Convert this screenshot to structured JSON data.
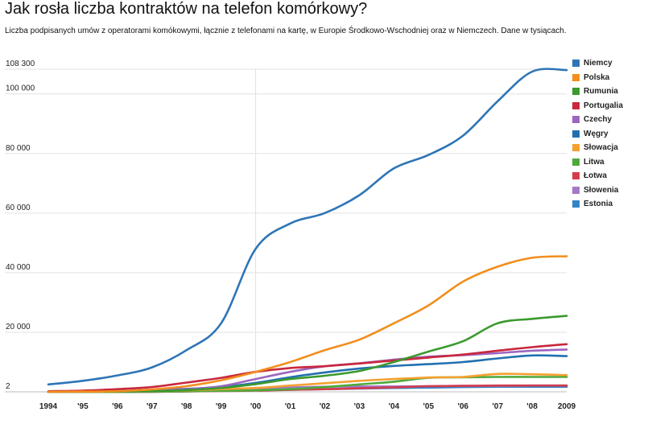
{
  "chart_data": {
    "type": "line",
    "title": "Jak rosła liczba kontraktów na telefon komórkowy?",
    "subtitle": "Liczba podpisanych umów z operatorami komókowymi, łącznie z telefonami na kartę, w Europie Środkowo-Wschodniej oraz w Niemczech. Dane w tysiącach.",
    "xlabel": "",
    "ylabel": "",
    "categories": [
      "1994",
      "'95",
      "'96",
      "'97",
      "'98",
      "'99",
      "'00",
      "'01",
      "'02",
      "'03",
      "'04",
      "'05",
      "'06",
      "'07",
      "'08",
      "2009"
    ],
    "ylim": [
      2,
      108300
    ],
    "yticks": [
      {
        "value": 2,
        "label": "2"
      },
      {
        "value": 20000,
        "label": "20 000"
      },
      {
        "value": 40000,
        "label": "40 000"
      },
      {
        "value": 60000,
        "label": "60 000"
      },
      {
        "value": 80000,
        "label": "80 000"
      },
      {
        "value": 100000,
        "label": "100 000"
      },
      {
        "value": 108300,
        "label": "108 300"
      }
    ],
    "highlight_x": "'00",
    "legend_position": "right",
    "series": [
      {
        "name": "Niemcy",
        "color": "#2e75b6",
        "values": [
          2500,
          3700,
          5500,
          8200,
          14000,
          23000,
          48000,
          56500,
          60000,
          66000,
          75000,
          79500,
          86000,
          97500,
          107500,
          108000
        ]
      },
      {
        "name": "Polska",
        "color": "#f28e1c",
        "values": [
          40,
          80,
          220,
          800,
          1900,
          3900,
          6700,
          10000,
          14000,
          17500,
          23000,
          29000,
          37000,
          42000,
          45000,
          45500
        ]
      },
      {
        "name": "Rumunia",
        "color": "#3a9a2d",
        "values": [
          0,
          20,
          40,
          200,
          600,
          1300,
          2600,
          4300,
          5400,
          7000,
          10000,
          13500,
          17000,
          23000,
          24500,
          25500
        ]
      },
      {
        "name": "Portugalia",
        "color": "#c9283e",
        "values": [
          200,
          400,
          900,
          1600,
          3100,
          4700,
          6700,
          8000,
          8600,
          9500,
          10500,
          11500,
          12500,
          13800,
          15000,
          16000
        ]
      },
      {
        "name": "Czechy",
        "color": "#9c66c0",
        "values": [
          10,
          50,
          200,
          500,
          900,
          1900,
          4300,
          6700,
          8600,
          9600,
          10800,
          11800,
          12300,
          13000,
          13800,
          14200
        ]
      },
      {
        "name": "Węgry",
        "color": "#2270b0",
        "values": [
          50,
          100,
          250,
          700,
          1000,
          1600,
          3000,
          4900,
          6500,
          7800,
          8700,
          9300,
          10000,
          11200,
          12200,
          12000
        ]
      },
      {
        "name": "Słowacja",
        "color": "#f5a030",
        "values": [
          5,
          10,
          30,
          200,
          500,
          900,
          1300,
          2100,
          2900,
          3700,
          4300,
          4800,
          5000,
          6000,
          5900,
          5600
        ]
      },
      {
        "name": "Litwa",
        "color": "#4caa3a",
        "values": [
          2,
          5,
          15,
          60,
          200,
          350,
          500,
          900,
          1600,
          2500,
          3400,
          4700,
          4900,
          5000,
          5000,
          5000
        ]
      },
      {
        "name": "Łotwa",
        "color": "#d43c4c",
        "values": [
          2,
          5,
          20,
          40,
          170,
          280,
          400,
          700,
          900,
          1200,
          1500,
          1900,
          2000,
          2100,
          2100,
          2100
        ]
      },
      {
        "name": "Słowenia",
        "color": "#a577c9",
        "values": [
          2,
          5,
          20,
          40,
          100,
          600,
          1100,
          1500,
          1700,
          1800,
          1800,
          1900,
          2000,
          2000,
          2100,
          2100
        ]
      },
      {
        "name": "Estonia",
        "color": "#3385c6",
        "values": [
          2,
          10,
          30,
          70,
          240,
          380,
          560,
          700,
          900,
          1100,
          1300,
          1400,
          1600,
          1700,
          1700,
          1700
        ]
      }
    ]
  }
}
